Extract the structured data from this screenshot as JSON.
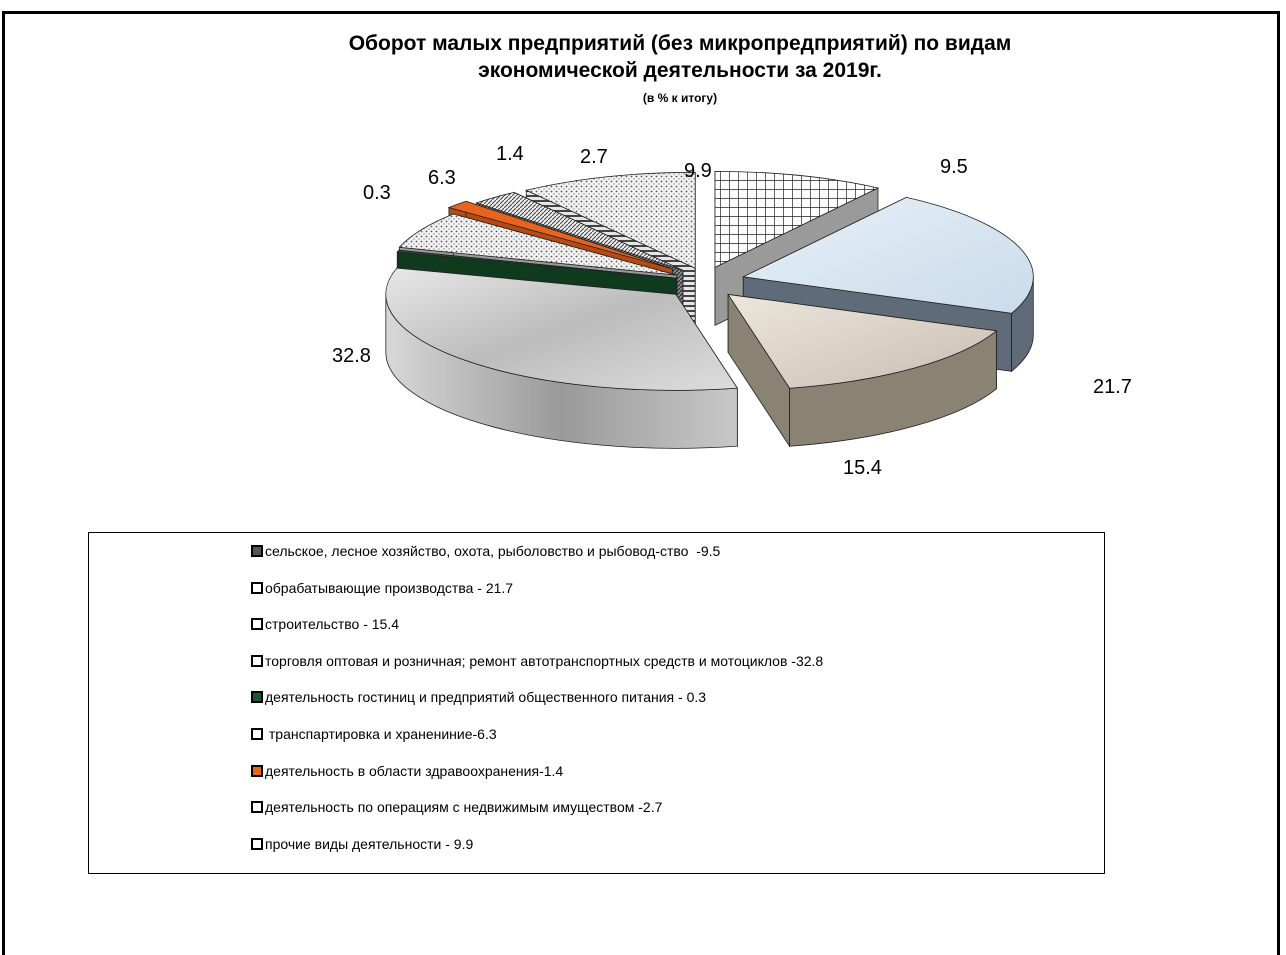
{
  "chart_data": {
    "type": "pie",
    "title_line1": "Оборот малых предприятий (без микропредприятий) по видам",
    "title_line2": "экономической деятельности  за 2019г.",
    "subtitle": "(в % к итогу)",
    "legend_placement": "bottom",
    "slices": [
      {
        "label": "сельское, лесное хозяйство, охота, рыболовство и рыбовод-ство  -9.5",
        "value": 9.5,
        "value_label": "9.5",
        "color": "#ffffff",
        "swatch": "#555555"
      },
      {
        "label": "обрабатывающие производства - 21.7",
        "value": 21.7,
        "value_label": "21.7",
        "color": "#d4e3ef",
        "swatch": "#ffffff"
      },
      {
        "label": "строительство - 15.4",
        "value": 15.4,
        "value_label": "15.4",
        "color": "#d8d0c4",
        "swatch": "#ffffff"
      },
      {
        "label": "торговля оптовая и розничная; ремонт автотранспортных средств и мотоциклов -32.8",
        "value": 32.8,
        "value_label": "32.8",
        "color": "#c8c8c8",
        "swatch": "#ffffff"
      },
      {
        "label": "деятельность гостиниц и предприятий общественного питания - 0.3",
        "value": 0.3,
        "value_label": "0.3",
        "color": "#1e5632",
        "swatch": "#1e5632"
      },
      {
        "label": " транспартировка и хранениние-6.3",
        "value": 6.3,
        "value_label": "6.3",
        "color": "#f4f4f4",
        "swatch": "#ffffff"
      },
      {
        "label": "деятельность в области здравоохранения-1.4",
        "value": 1.4,
        "value_label": "1.4",
        "color": "#e8641e",
        "swatch": "#e8641e"
      },
      {
        "label": "деятельность по операциям с недвижимым имуществом -2.7",
        "value": 2.7,
        "value_label": "2.7",
        "color": "#bbbbbb",
        "swatch": "#ffffff"
      },
      {
        "label": "прочие виды деятельности - 9.9",
        "value": 9.9,
        "value_label": "9.9",
        "color": "#eeeeee",
        "swatch": "#ffffff"
      }
    ]
  }
}
